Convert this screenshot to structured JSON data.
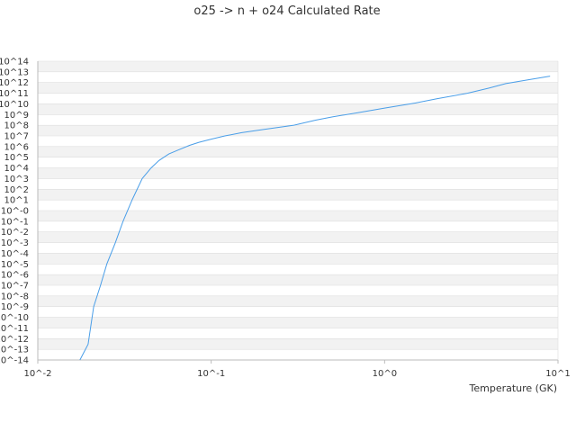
{
  "chart_data": {
    "type": "line",
    "title": "o25 -> n + o24 Calculated Rate",
    "xlabel": "Temperature (GK)",
    "ylabel": "",
    "x_scale": "log",
    "y_scale": "log",
    "xlim": [
      0.01,
      10
    ],
    "ylim": [
      1e-14,
      100000000000000.0
    ],
    "grid": true,
    "grid_style": "alternating horizontal bands",
    "legend": "none",
    "x_tick_labels": [
      "10^-2",
      "10^-1",
      "10^0",
      "10^1"
    ],
    "y_tick_labels": [
      "10^-14",
      "10^-13",
      "10^-12",
      "10^-11",
      "10^-10",
      "10^-9",
      "10^-8",
      "10^-7",
      "10^-6",
      "10^-5",
      "10^-4",
      "10^-3",
      "10^-2",
      "10^-1",
      "10^-0",
      "10^1",
      "10^2",
      "10^3",
      "10^4",
      "10^5",
      "10^6",
      "10^7",
      "10^8",
      "10^9",
      "10^10",
      "10^11",
      "10^12",
      "10^13",
      "10^14"
    ],
    "colors": {
      "line": "#4a9ee8",
      "band": "#f2f2f2",
      "grid": "#dddddd",
      "axis": "#bbbbbb"
    },
    "series": [
      {
        "x": [
          0.0175,
          0.0195,
          0.021,
          0.023,
          0.025,
          0.028,
          0.031,
          0.035,
          0.04,
          0.045,
          0.05,
          0.057,
          0.065,
          0.075,
          0.085,
          0.1,
          0.12,
          0.15,
          0.2,
          0.3,
          0.4,
          0.5,
          0.7,
          1.0,
          1.5,
          2.0,
          3.0,
          4.0,
          5.0,
          7.0,
          9.0
        ],
        "y": [
          1e-14,
          3e-13,
          1e-09,
          1e-07,
          1e-05,
          0.001,
          0.1,
          10,
          1000.0,
          10000.0,
          50000.0,
          200000.0,
          500000.0,
          1300000.0,
          2500000.0,
          5000000.0,
          10000000.0,
          20000000.0,
          40000000.0,
          100000000.0,
          300000000.0,
          600000000.0,
          1500000000.0,
          4000000000.0,
          12000000000.0,
          30000000000.0,
          100000000000.0,
          300000000000.0,
          800000000000.0,
          2000000000000.0,
          4000000000000.0
        ]
      }
    ]
  }
}
